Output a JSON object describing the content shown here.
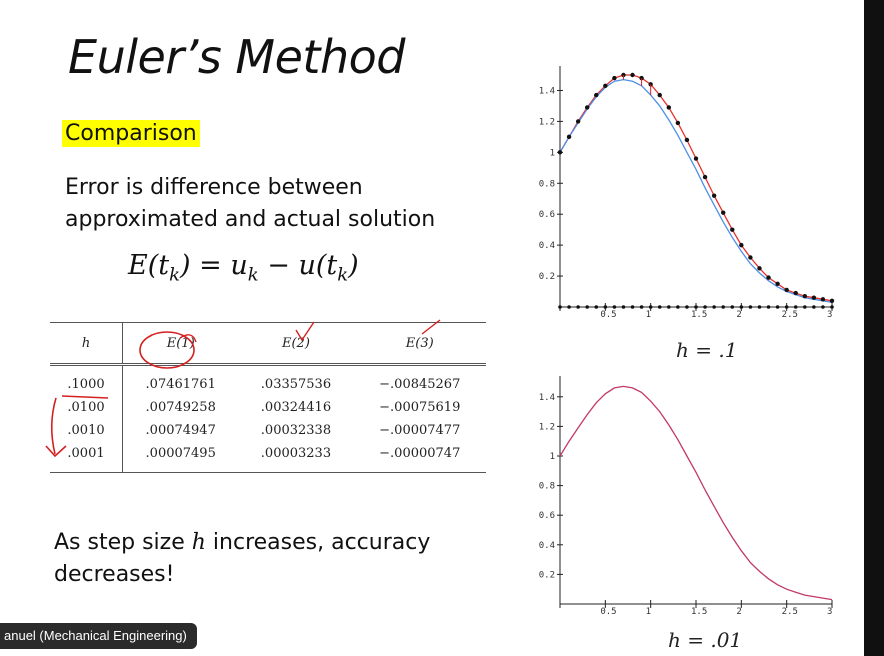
{
  "slide": {
    "title": "Euler’s Method",
    "section_label": "Comparison",
    "description_line1": "Error is difference between",
    "description_line2": "approximated and actual solution",
    "formula": {
      "lhs": "E(t",
      "lhs_sub": "k",
      "middle": ") = u",
      "middle_sub": "k",
      "rhs": " − u(t",
      "rhs_sub": "k",
      "end": ")"
    },
    "conclusion_line1_pre": "As step size ",
    "conclusion_line1_var": "h",
    "conclusion_line1_post": " increases, accuracy",
    "conclusion_line2": "decreases!"
  },
  "table": {
    "headers": [
      "h",
      "E(1)",
      "E(2)",
      "E(3)"
    ],
    "rows": [
      [
        ".1000",
        ".07461761",
        ".03357536",
        "−.00845267"
      ],
      [
        ".0100",
        ".00749258",
        ".00324416",
        "−.00075619"
      ],
      [
        ".0010",
        ".00074947",
        ".00032338",
        "−.00007477"
      ],
      [
        ".0001",
        ".00007495",
        ".00003233",
        "−.00000747"
      ]
    ]
  },
  "chart_data": [
    {
      "type": "line",
      "caption": "h = .1",
      "xlim": [
        0,
        3
      ],
      "ylim": [
        0,
        1.5
      ],
      "x_ticks": [
        "0.5",
        "1",
        "1.5",
        "2",
        "2.5",
        "3"
      ],
      "y_ticks": [
        "0.2",
        "0.4",
        "0.6",
        "0.8",
        "1",
        "1.2",
        "1.4"
      ],
      "series": [
        {
          "color": "#e8322c",
          "x": [
            0,
            0.1,
            0.2,
            0.3,
            0.4,
            0.5,
            0.6,
            0.7,
            0.8,
            0.9,
            1.0,
            1.1,
            1.2,
            1.3,
            1.4,
            1.5,
            1.6,
            1.7,
            1.8,
            1.9,
            2.0,
            2.1,
            2.2,
            2.3,
            2.4,
            2.5,
            2.6,
            2.7,
            2.8,
            2.9,
            3.0
          ],
          "y": [
            1.0,
            1.1,
            1.2,
            1.29,
            1.37,
            1.43,
            1.48,
            1.5,
            1.5,
            1.48,
            1.44,
            1.37,
            1.29,
            1.19,
            1.08,
            0.96,
            0.84,
            0.72,
            0.61,
            0.5,
            0.4,
            0.32,
            0.25,
            0.19,
            0.15,
            0.11,
            0.09,
            0.07,
            0.06,
            0.05,
            0.04
          ]
        },
        {
          "color": "#4f8fe8",
          "x": [
            0,
            0.1,
            0.2,
            0.3,
            0.4,
            0.5,
            0.6,
            0.7,
            0.8,
            0.9,
            1.0,
            1.1,
            1.2,
            1.3,
            1.4,
            1.5,
            1.6,
            1.7,
            1.8,
            1.9,
            2.0,
            2.1,
            2.2,
            2.3,
            2.4,
            2.5,
            2.6,
            2.7,
            2.8,
            2.9,
            3.0
          ],
          "y": [
            1.0,
            1.1,
            1.19,
            1.28,
            1.36,
            1.42,
            1.46,
            1.47,
            1.46,
            1.43,
            1.37,
            1.3,
            1.21,
            1.11,
            1.0,
            0.89,
            0.77,
            0.66,
            0.55,
            0.45,
            0.36,
            0.28,
            0.22,
            0.17,
            0.13,
            0.1,
            0.08,
            0.06,
            0.05,
            0.04,
            0.03
          ]
        }
      ]
    },
    {
      "type": "line",
      "caption": "h = .01",
      "xlim": [
        0,
        3
      ],
      "ylim": [
        0,
        1.5
      ],
      "x_ticks": [
        "0.5",
        "1",
        "1.5",
        "2",
        "2.5",
        "3"
      ],
      "y_ticks": [
        "0.2",
        "0.4",
        "0.6",
        "0.8",
        "1",
        "1.2",
        "1.4"
      ],
      "series": [
        {
          "color": "#c2386a",
          "x": [
            0,
            0.1,
            0.2,
            0.3,
            0.4,
            0.5,
            0.6,
            0.7,
            0.8,
            0.9,
            1.0,
            1.1,
            1.2,
            1.3,
            1.4,
            1.5,
            1.6,
            1.7,
            1.8,
            1.9,
            2.0,
            2.1,
            2.2,
            2.3,
            2.4,
            2.5,
            2.6,
            2.7,
            2.8,
            2.9,
            3.0
          ],
          "y": [
            1.0,
            1.1,
            1.19,
            1.28,
            1.36,
            1.42,
            1.46,
            1.47,
            1.46,
            1.43,
            1.37,
            1.3,
            1.21,
            1.11,
            1.0,
            0.89,
            0.77,
            0.66,
            0.55,
            0.45,
            0.36,
            0.28,
            0.22,
            0.17,
            0.13,
            0.1,
            0.08,
            0.06,
            0.05,
            0.04,
            0.03
          ]
        }
      ]
    }
  ],
  "speaker": {
    "label": "anuel (Mechanical Engineering)"
  },
  "colors": {
    "highlight": "#ffff00",
    "euler": "#e8322c",
    "exact": "#4f8fe8",
    "annotation": "#d42020"
  }
}
